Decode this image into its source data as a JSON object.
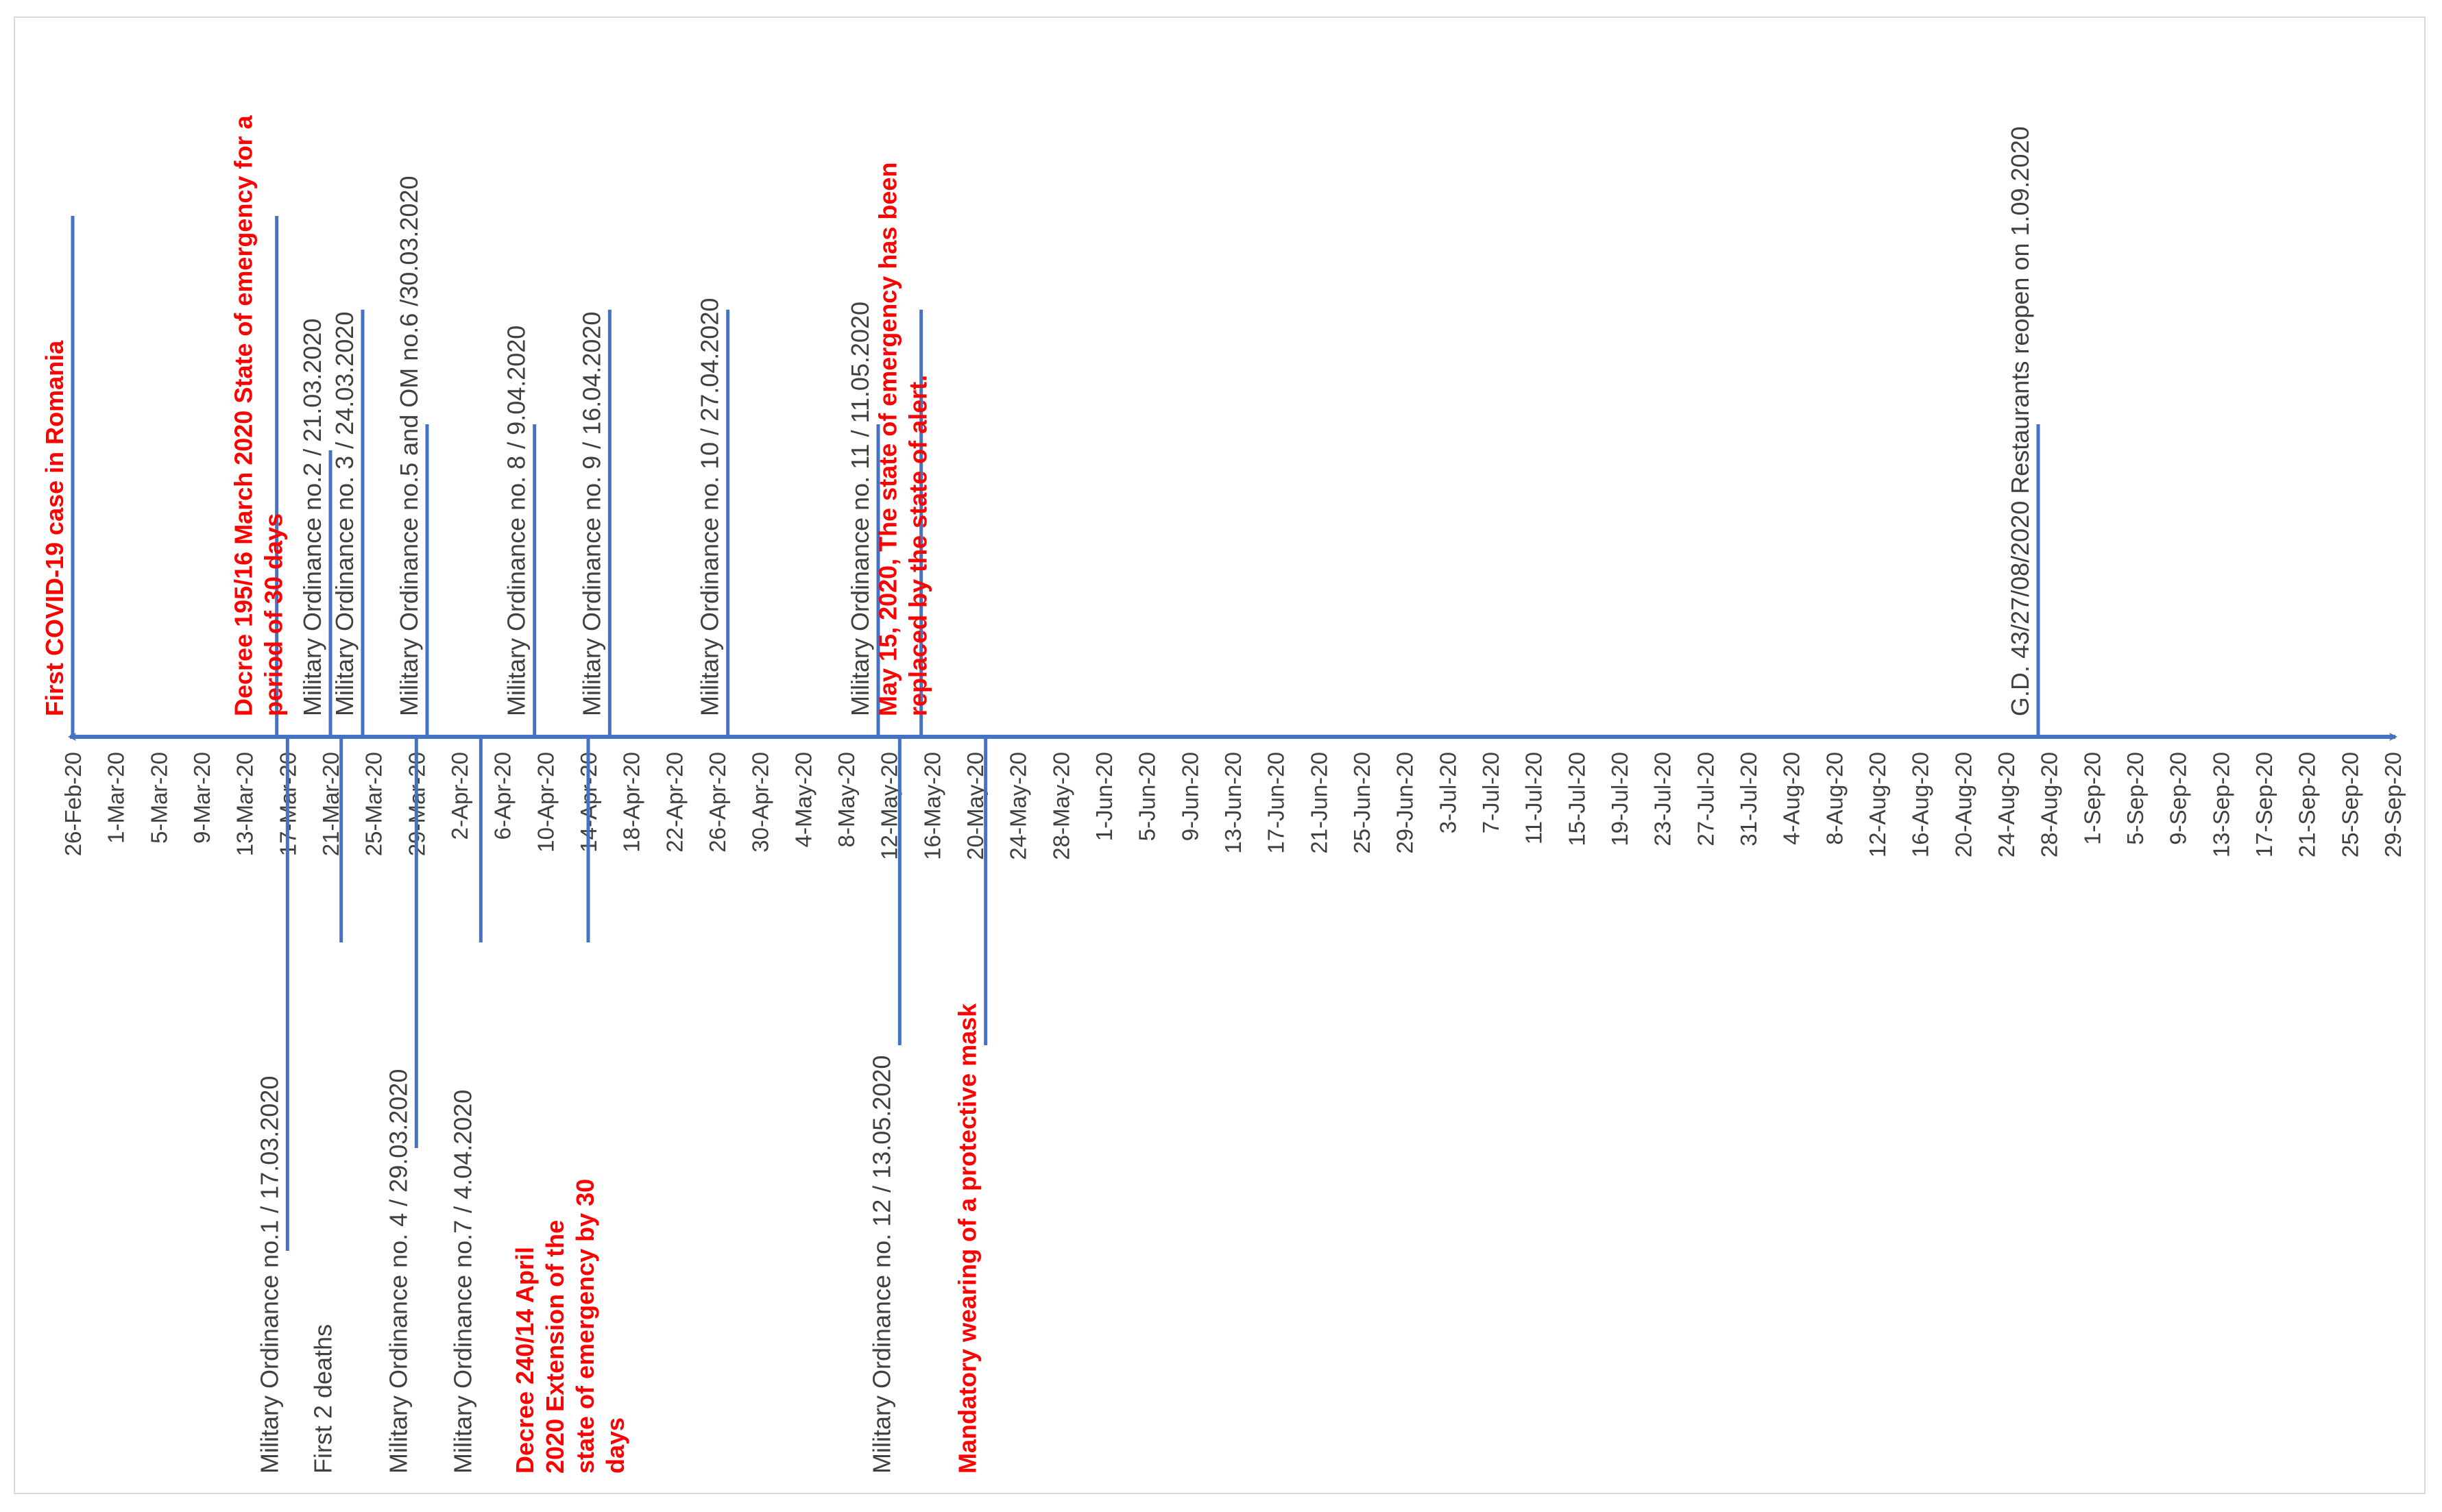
{
  "colors": {
    "axis": "#4472C4",
    "bar": "#4472C4",
    "tick_text": "#404040",
    "text_normal": "#404040",
    "text_highlight": "#FF0000",
    "leader": "#A6A6A6",
    "frame": "#D9D9D9"
  },
  "axis": {
    "start_date": "2020-02-26",
    "end_date": "2020-09-29",
    "tick_step_days": 4,
    "tick_labels": [
      "26-Feb-20",
      "1-Mar-20",
      "5-Mar-20",
      "9-Mar-20",
      "13-Mar-20",
      "17-Mar-20",
      "21-Mar-20",
      "25-Mar-20",
      "29-Mar-20",
      "2-Apr-20",
      "6-Apr-20",
      "10-Apr-20",
      "14-Apr-20",
      "18-Apr-20",
      "22-Apr-20",
      "26-Apr-20",
      "30-Apr-20",
      "4-May-20",
      "8-May-20",
      "12-May-20",
      "16-May-20",
      "20-May-20",
      "24-May-20",
      "28-May-20",
      "1-Jun-20",
      "5-Jun-20",
      "9-Jun-20",
      "13-Jun-20",
      "17-Jun-20",
      "21-Jun-20",
      "25-Jun-20",
      "29-Jun-20",
      "3-Jul-20",
      "7-Jul-20",
      "11-Jul-20",
      "15-Jul-20",
      "19-Jul-20",
      "23-Jul-20",
      "27-Jul-20",
      "31-Jul-20",
      "4-Aug-20",
      "8-Aug-20",
      "12-Aug-20",
      "16-Aug-20",
      "20-Aug-20",
      "24-Aug-20",
      "28-Aug-20",
      "1-Sep-20",
      "5-Sep-20",
      "9-Sep-20",
      "13-Sep-20",
      "17-Sep-20",
      "21-Sep-20",
      "25-Sep-20",
      "29-Sep-20"
    ]
  },
  "events": [
    {
      "date": "2020-02-26",
      "side": "above",
      "bar": 1.0,
      "highlight": true,
      "lines": [
        "First COVID-19 case in Romania"
      ]
    },
    {
      "date": "2020-03-16",
      "side": "above",
      "bar": 1.0,
      "highlight": true,
      "lines": [
        "Decree 195/16 March 2020 State of emergency for a",
        "period of 30 days"
      ]
    },
    {
      "date": "2020-03-21",
      "side": "above",
      "bar": 0.55,
      "highlight": false,
      "lines": [
        "Military Ordinance no.2 / 21.03.2020"
      ]
    },
    {
      "date": "2020-03-24",
      "side": "above",
      "bar": 0.82,
      "highlight": false,
      "lines": [
        "Military Ordinance no. 3 / 24.03.2020"
      ]
    },
    {
      "date": "2020-03-30",
      "side": "above",
      "bar": 0.6,
      "highlight": false,
      "lines": [
        "Military Ordinance no.5 and OM no.6 /30.03.2020"
      ]
    },
    {
      "date": "2020-04-09",
      "side": "above",
      "bar": 0.6,
      "highlight": false,
      "lines": [
        "Military Ordinance no. 8 / 9.04.2020"
      ]
    },
    {
      "date": "2020-04-16",
      "side": "above",
      "bar": 0.82,
      "highlight": false,
      "lines": [
        "Military Ordinance no. 9 / 16.04.2020"
      ]
    },
    {
      "date": "2020-04-27",
      "side": "above",
      "bar": 0.82,
      "highlight": false,
      "lines": [
        "Military Ordinance no. 10 / 27.04.2020"
      ]
    },
    {
      "date": "2020-05-11",
      "side": "above",
      "bar": 0.6,
      "highlight": false,
      "lines": [
        "Military Ordinance no. 11 / 11.05.2020"
      ]
    },
    {
      "date": "2020-05-15",
      "side": "above",
      "bar": 0.82,
      "highlight": true,
      "lines": [
        "May 15, 2020, The state of emergency has been",
        "replaced by the state of alert."
      ]
    },
    {
      "date": "2020-08-27",
      "side": "above",
      "bar": 0.6,
      "highlight": false,
      "lines": [
        "G.D. 43/27/08/2020 Restaurants reopen on 1.09.2020"
      ]
    },
    {
      "date": "2020-03-17",
      "side": "below",
      "bar": 1.0,
      "highlight": false,
      "lines": [
        "Military Ordinance no.1 / 17.03.2020"
      ]
    },
    {
      "date": "2020-03-22",
      "side": "below",
      "bar": 0.4,
      "highlight": false,
      "lines": [
        "First 2 deaths"
      ]
    },
    {
      "date": "2020-03-29",
      "side": "below",
      "bar": 0.8,
      "highlight": false,
      "lines": [
        "Military Ordinance no. 4 / 29.03.2020"
      ]
    },
    {
      "date": "2020-04-04",
      "side": "below",
      "bar": 0.4,
      "highlight": false,
      "lines": [
        "Military Ordinance no.7 / 4.04.2020"
      ]
    },
    {
      "date": "2020-04-14",
      "side": "below",
      "bar": 0.4,
      "highlight": true,
      "lines": [
        "Decree 240/14 April",
        "2020 Extension of the",
        "state of emergency by 30",
        "days"
      ]
    },
    {
      "date": "2020-05-13",
      "side": "below",
      "bar": 0.6,
      "highlight": false,
      "lines": [
        "Military Ordinance no. 12 / 13.05.2020"
      ]
    },
    {
      "date": "2020-05-21",
      "side": "below",
      "bar": 0.6,
      "highlight": true,
      "lines": [
        "Mandatory wearing of a protective mask"
      ]
    }
  ]
}
